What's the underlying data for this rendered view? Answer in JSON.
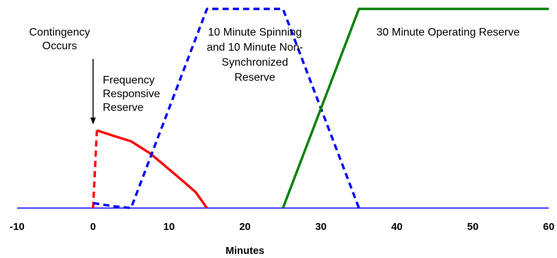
{
  "chart_data": {
    "type": "line",
    "xlabel": "Minutes",
    "xlim": [
      -10,
      60
    ],
    "x_ticks": [
      "-10",
      "0",
      "10",
      "20",
      "30",
      "40",
      "50",
      "60"
    ],
    "ylim": [
      0,
      1
    ],
    "grid": false,
    "legend": "none",
    "series": [
      {
        "key": "baseline",
        "color": "#0000ff",
        "style": "solid",
        "points": [
          [
            -10,
            0
          ],
          [
            60,
            0
          ]
        ]
      },
      {
        "key": "frequency",
        "color": "#ff0000",
        "style": "solid",
        "points": [
          [
            0.5,
            0.39
          ],
          [
            2.5,
            0.365
          ],
          [
            5,
            0.335
          ],
          [
            7.5,
            0.275
          ],
          [
            10,
            0.195
          ],
          [
            12,
            0.13
          ],
          [
            13.5,
            0.08
          ],
          [
            15,
            0
          ]
        ]
      },
      {
        "key": "frequency-rise",
        "color": "#ff0000",
        "style": "dashed",
        "points": [
          [
            0,
            0
          ],
          [
            0.5,
            0.39
          ]
        ]
      },
      {
        "key": "ten-minute",
        "color": "#0000ff",
        "style": "dashed",
        "points": [
          [
            0,
            0.025
          ],
          [
            2.5,
            0.01
          ],
          [
            5,
            0
          ],
          [
            15,
            1.0
          ],
          [
            25,
            1.0
          ],
          [
            35,
            0
          ]
        ]
      },
      {
        "key": "thirty-minute",
        "color": "#008000",
        "style": "solid",
        "points": [
          [
            25,
            0
          ],
          [
            35,
            1.0
          ],
          [
            60,
            1.0
          ]
        ]
      }
    ],
    "annotations": [
      {
        "key": "contingency",
        "lines": [
          "Contingency",
          "Occurs"
        ],
        "arrow_to": [
          0,
          0.42
        ]
      },
      {
        "key": "frequency",
        "lines": [
          "Frequency",
          "Responsive",
          "Reserve"
        ]
      },
      {
        "key": "ten-minute",
        "lines": [
          "10 Minute Spinning",
          "and 10 Minute Non-",
          "Synchronized",
          "Reserve"
        ]
      },
      {
        "key": "thirty-minute",
        "lines": [
          "30 Minute Operating Reserve"
        ]
      }
    ]
  }
}
